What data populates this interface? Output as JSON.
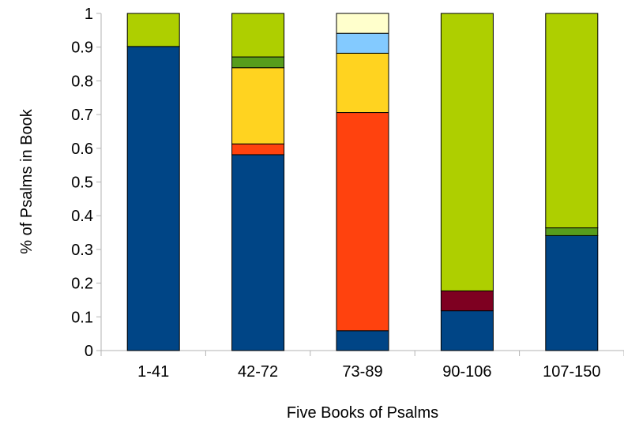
{
  "chart_data": {
    "type": "bar",
    "stacked": true,
    "categories": [
      "1-41",
      "42-72",
      "73-89",
      "90-106",
      "107-150"
    ],
    "series": [
      {
        "color": "#004586",
        "values": [
          0.902,
          0.581,
          0.059,
          0.118,
          0.341
        ]
      },
      {
        "color": "#ff420e",
        "values": [
          0,
          0.032,
          0.647,
          0,
          0
        ]
      },
      {
        "color": "#ffd320",
        "values": [
          0,
          0.226,
          0.176,
          0,
          0
        ]
      },
      {
        "color": "#579d1c",
        "values": [
          0,
          0.032,
          0,
          0,
          0.023
        ]
      },
      {
        "color": "#7e0021",
        "values": [
          0,
          0,
          0,
          0.059,
          0
        ]
      },
      {
        "color": "#83caff",
        "values": [
          0,
          0,
          0.059,
          0,
          0
        ]
      },
      {
        "color": "#ffffcc",
        "values": [
          0,
          0,
          0.059,
          0,
          0
        ]
      },
      {
        "color": "#aecf00",
        "values": [
          0.098,
          0.129,
          0,
          0.823,
          0.636
        ]
      }
    ],
    "xlabel": "Five Books of Psalms",
    "ylabel": "% of Psalms in Book",
    "ylim": [
      0,
      1
    ],
    "yticks": [
      0,
      0.1,
      0.2,
      0.3,
      0.4,
      0.5,
      0.6,
      0.7,
      0.8,
      0.9,
      1
    ],
    "ytick_labels": [
      "0",
      "0.1",
      "0.2",
      "0.3",
      "0.4",
      "0.5",
      "0.6",
      "0.7",
      "0.8",
      "0.9",
      "1"
    ],
    "grid": false,
    "legend": "none"
  }
}
